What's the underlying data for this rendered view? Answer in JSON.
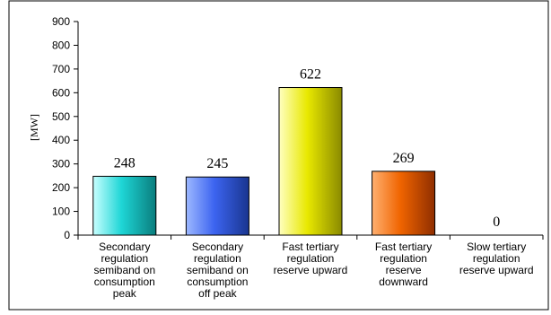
{
  "chart_data": {
    "type": "bar",
    "title": "",
    "xlabel": "",
    "ylabel": "[MW]",
    "ylim": [
      0,
      900
    ],
    "yticks": [
      0,
      100,
      200,
      300,
      400,
      500,
      600,
      700,
      800,
      900
    ],
    "grid": false,
    "legend": "none",
    "categories": [
      [
        "Secondary",
        "regulation",
        "semiband on",
        "consumption",
        "peak"
      ],
      [
        "Secondary",
        "regulation",
        "semiband on",
        "consumption",
        "off peak"
      ],
      [
        "Fast tertiary",
        "regulation",
        "reserve upward"
      ],
      [
        "Fast tertiary",
        "regulation",
        "reserve",
        "downward"
      ],
      [
        "Slow tertiary",
        "regulation",
        "reserve upward"
      ]
    ],
    "values": [
      248,
      245,
      622,
      269,
      0
    ],
    "bar_colors": [
      {
        "light": "#c8ffff",
        "main": "#1ed6d6",
        "dark": "#0a7d7d"
      },
      {
        "light": "#9db8ff",
        "main": "#3c64f0",
        "dark": "#19358f"
      },
      {
        "light": "#ffffc0",
        "main": "#e8e800",
        "dark": "#8a8a00"
      },
      {
        "light": "#ffb070",
        "main": "#f06400",
        "dark": "#8f2e00"
      },
      {
        "light": "#eeeeee",
        "main": "#999999",
        "dark": "#555555"
      }
    ]
  }
}
